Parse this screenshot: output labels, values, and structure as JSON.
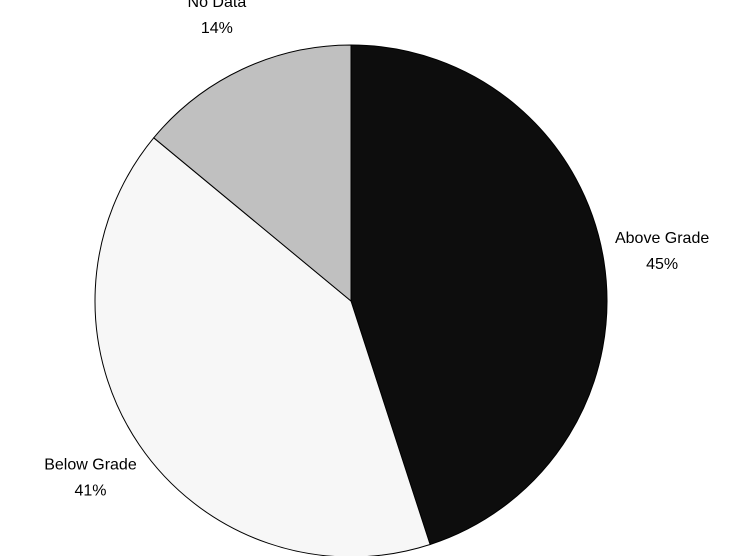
{
  "chart_data": {
    "type": "pie",
    "categories": [
      "Above Grade",
      "Below Grade",
      "No Data"
    ],
    "values": [
      45,
      41,
      14
    ],
    "value_labels": [
      "45%",
      "41%",
      "14%"
    ],
    "colors": [
      "#0d0d0d",
      "#f7f7f7",
      "#c0c0c0"
    ]
  }
}
